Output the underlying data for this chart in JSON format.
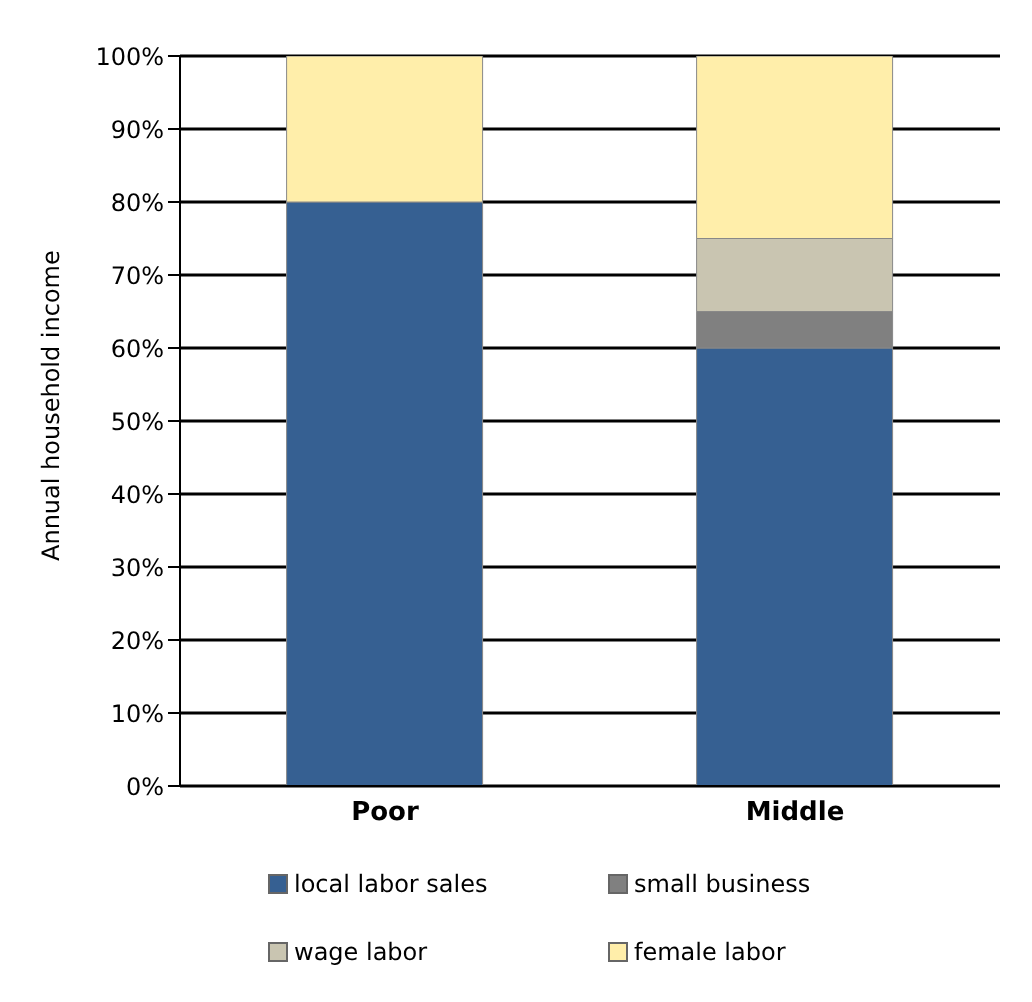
{
  "chart_data": {
    "type": "bar",
    "stacked": true,
    "ylabel": "Annual household income",
    "categories": [
      "Poor",
      "Middle"
    ],
    "series": [
      {
        "name": "local labor sales",
        "color": "#366092",
        "values": [
          80,
          60
        ]
      },
      {
        "name": "small business",
        "color": "#808080",
        "values": [
          0,
          5
        ]
      },
      {
        "name": "wage labor",
        "color": "#c9c5b1",
        "values": [
          0,
          10
        ]
      },
      {
        "name": "female labor",
        "color": "#ffeeaa",
        "values": [
          20,
          25
        ]
      }
    ],
    "ylim": [
      0,
      100
    ],
    "yticks": [
      {
        "value": 0,
        "label": "0%"
      },
      {
        "value": 10,
        "label": "10%"
      },
      {
        "value": 20,
        "label": "20%"
      },
      {
        "value": 30,
        "label": "30%"
      },
      {
        "value": 40,
        "label": "40%"
      },
      {
        "value": 50,
        "label": "50%"
      },
      {
        "value": 60,
        "label": "60%"
      },
      {
        "value": 70,
        "label": "70%"
      },
      {
        "value": 80,
        "label": "80%"
      },
      {
        "value": 90,
        "label": "90%"
      },
      {
        "value": 100,
        "label": "100%"
      }
    ],
    "grid": "y",
    "legend": "bottom"
  }
}
